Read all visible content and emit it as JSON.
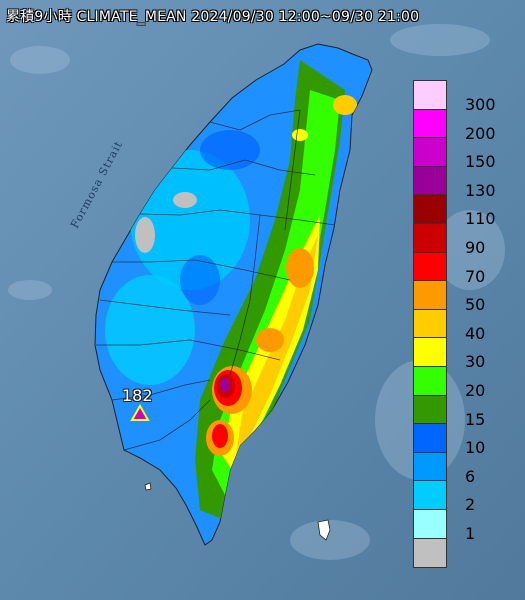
{
  "title": "累積9小時 CLIMATE_MEAN 2024/09/30 12:00~09/30 21:00",
  "sea_label": "Formosa Strait",
  "max_marker": {
    "value": "182",
    "color": "#cc00cc"
  },
  "legend": {
    "items": [
      {
        "label": "300",
        "color": "#ffccff"
      },
      {
        "label": "200",
        "color": "#ff00ff"
      },
      {
        "label": "150",
        "color": "#cc00cc"
      },
      {
        "label": "130",
        "color": "#990099"
      },
      {
        "label": "110",
        "color": "#990000"
      },
      {
        "label": "90",
        "color": "#cc0000"
      },
      {
        "label": "70",
        "color": "#ff0000"
      },
      {
        "label": "50",
        "color": "#ff9900"
      },
      {
        "label": "40",
        "color": "#ffcc00"
      },
      {
        "label": "30",
        "color": "#ffff00"
      },
      {
        "label": "20",
        "color": "#33ff00"
      },
      {
        "label": "15",
        "color": "#339900"
      },
      {
        "label": "10",
        "color": "#0066ff"
      },
      {
        "label": "6",
        "color": "#0099ff"
      },
      {
        "label": "2",
        "color": "#00ccff"
      },
      {
        "label": "1",
        "color": "#99ffff"
      },
      {
        "label": "",
        "color": "#c0c0c0"
      }
    ]
  },
  "colors": {
    "sea": "#5d89ad",
    "land_base": "#1e90ff"
  }
}
